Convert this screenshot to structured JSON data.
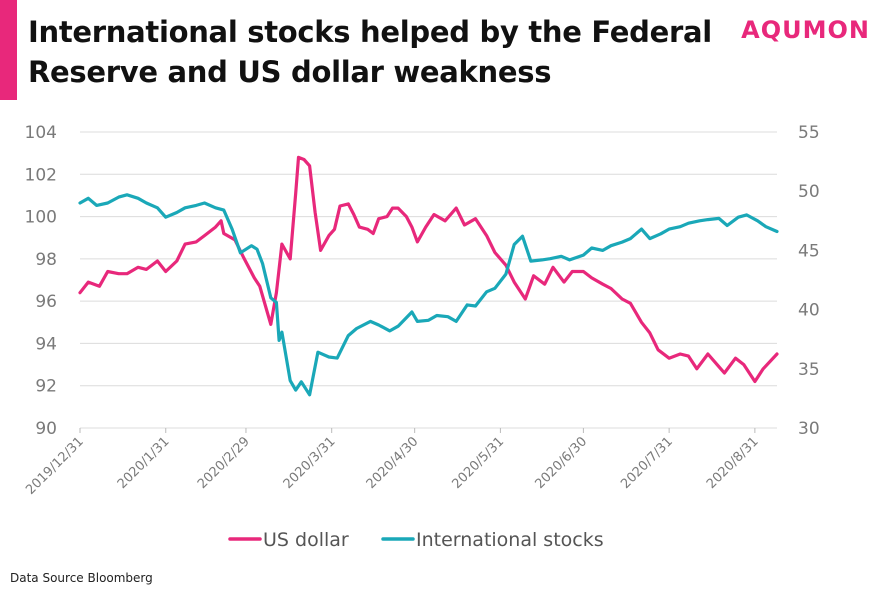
{
  "header": {
    "title": "International stocks helped by the Federal Reserve and US dollar weakness",
    "brand": "AQUMON",
    "accent_color": "#e8287b"
  },
  "footer": {
    "source": "Data Source Bloomberg"
  },
  "chart_data": {
    "type": "line",
    "title": "International stocks helped by the Federal Reserve and US dollar weakness",
    "x_tick_labels": [
      "2019/12/31",
      "2020/1/31",
      "2020/2/29",
      "2020/3/31",
      "2020/4/30",
      "2020/5/31",
      "2020/6/30",
      "2020/7/31",
      "2020/8/31"
    ],
    "x_tick_dates": [
      "2019-12-31",
      "2020-01-31",
      "2020-02-29",
      "2020-03-31",
      "2020-04-30",
      "2020-05-31",
      "2020-06-30",
      "2020-07-31",
      "2020-08-31"
    ],
    "x_range": [
      "2019-12-31",
      "2020-09-08"
    ],
    "y_left": {
      "min": 90,
      "max": 104,
      "ticks": [
        90,
        92,
        94,
        96,
        98,
        100,
        102,
        104
      ]
    },
    "y_right": {
      "min": 30,
      "max": 55,
      "ticks": [
        30,
        35,
        40,
        45,
        50,
        55
      ]
    },
    "grid": "horizontal",
    "legend_position": "bottom",
    "series": [
      {
        "name": "US dollar",
        "axis": "left",
        "color": "#e8287b",
        "points": [
          [
            "2019-12-31",
            96.4
          ],
          [
            "2020-01-03",
            96.9
          ],
          [
            "2020-01-07",
            96.7
          ],
          [
            "2020-01-10",
            97.4
          ],
          [
            "2020-01-14",
            97.3
          ],
          [
            "2020-01-17",
            97.3
          ],
          [
            "2020-01-21",
            97.6
          ],
          [
            "2020-01-24",
            97.5
          ],
          [
            "2020-01-28",
            97.9
          ],
          [
            "2020-01-31",
            97.4
          ],
          [
            "2020-02-04",
            97.9
          ],
          [
            "2020-02-07",
            98.7
          ],
          [
            "2020-02-11",
            98.8
          ],
          [
            "2020-02-14",
            99.1
          ],
          [
            "2020-02-18",
            99.5
          ],
          [
            "2020-02-20",
            99.8
          ],
          [
            "2020-02-21",
            99.2
          ],
          [
            "2020-02-25",
            98.9
          ],
          [
            "2020-02-28",
            98.1
          ],
          [
            "2020-03-03",
            97.1
          ],
          [
            "2020-03-05",
            96.7
          ],
          [
            "2020-03-09",
            94.9
          ],
          [
            "2020-03-11",
            96.4
          ],
          [
            "2020-03-13",
            98.7
          ],
          [
            "2020-03-16",
            98.0
          ],
          [
            "2020-03-18",
            101.1
          ],
          [
            "2020-03-19",
            102.8
          ],
          [
            "2020-03-21",
            102.7
          ],
          [
            "2020-03-23",
            102.4
          ],
          [
            "2020-03-25",
            100.2
          ],
          [
            "2020-03-27",
            98.4
          ],
          [
            "2020-03-30",
            99.1
          ],
          [
            "2020-04-01",
            99.4
          ],
          [
            "2020-04-03",
            100.5
          ],
          [
            "2020-04-06",
            100.6
          ],
          [
            "2020-04-08",
            100.1
          ],
          [
            "2020-04-10",
            99.5
          ],
          [
            "2020-04-13",
            99.4
          ],
          [
            "2020-04-15",
            99.2
          ],
          [
            "2020-04-17",
            99.9
          ],
          [
            "2020-04-20",
            100.0
          ],
          [
            "2020-04-22",
            100.4
          ],
          [
            "2020-04-24",
            100.4
          ],
          [
            "2020-04-27",
            100.0
          ],
          [
            "2020-04-29",
            99.5
          ],
          [
            "2020-05-01",
            98.8
          ],
          [
            "2020-05-04",
            99.5
          ],
          [
            "2020-05-07",
            100.1
          ],
          [
            "2020-05-11",
            99.8
          ],
          [
            "2020-05-15",
            100.4
          ],
          [
            "2020-05-18",
            99.6
          ],
          [
            "2020-05-22",
            99.9
          ],
          [
            "2020-05-26",
            99.1
          ],
          [
            "2020-05-29",
            98.3
          ],
          [
            "2020-06-02",
            97.7
          ],
          [
            "2020-06-05",
            96.9
          ],
          [
            "2020-06-09",
            96.1
          ],
          [
            "2020-06-12",
            97.2
          ],
          [
            "2020-06-16",
            96.8
          ],
          [
            "2020-06-19",
            97.6
          ],
          [
            "2020-06-23",
            96.9
          ],
          [
            "2020-06-26",
            97.4
          ],
          [
            "2020-06-30",
            97.4
          ],
          [
            "2020-07-03",
            97.1
          ],
          [
            "2020-07-07",
            96.8
          ],
          [
            "2020-07-10",
            96.6
          ],
          [
            "2020-07-14",
            96.1
          ],
          [
            "2020-07-17",
            95.9
          ],
          [
            "2020-07-21",
            95.0
          ],
          [
            "2020-07-24",
            94.5
          ],
          [
            "2020-07-27",
            93.7
          ],
          [
            "2020-07-31",
            93.3
          ],
          [
            "2020-08-04",
            93.5
          ],
          [
            "2020-08-07",
            93.4
          ],
          [
            "2020-08-10",
            92.8
          ],
          [
            "2020-08-14",
            93.5
          ],
          [
            "2020-08-18",
            92.9
          ],
          [
            "2020-08-20",
            92.6
          ],
          [
            "2020-08-24",
            93.3
          ],
          [
            "2020-08-27",
            93.0
          ],
          [
            "2020-08-31",
            92.2
          ],
          [
            "2020-09-03",
            92.8
          ],
          [
            "2020-09-08",
            93.5
          ]
        ]
      },
      {
        "name": "International stocks",
        "axis": "right",
        "color": "#1aa8b8",
        "points": [
          [
            "2019-12-31",
            49.0
          ],
          [
            "2020-01-03",
            49.4
          ],
          [
            "2020-01-06",
            48.8
          ],
          [
            "2020-01-10",
            49.0
          ],
          [
            "2020-01-14",
            49.5
          ],
          [
            "2020-01-17",
            49.7
          ],
          [
            "2020-01-21",
            49.4
          ],
          [
            "2020-01-24",
            49.0
          ],
          [
            "2020-01-28",
            48.6
          ],
          [
            "2020-01-31",
            47.8
          ],
          [
            "2020-02-04",
            48.2
          ],
          [
            "2020-02-07",
            48.6
          ],
          [
            "2020-02-11",
            48.8
          ],
          [
            "2020-02-14",
            49.0
          ],
          [
            "2020-02-18",
            48.6
          ],
          [
            "2020-02-21",
            48.4
          ],
          [
            "2020-02-24",
            46.8
          ],
          [
            "2020-02-27",
            44.8
          ],
          [
            "2020-03-02",
            45.4
          ],
          [
            "2020-03-04",
            45.1
          ],
          [
            "2020-03-06",
            43.9
          ],
          [
            "2020-03-09",
            41.0
          ],
          [
            "2020-03-11",
            40.6
          ],
          [
            "2020-03-12",
            37.4
          ],
          [
            "2020-03-13",
            38.1
          ],
          [
            "2020-03-16",
            34.0
          ],
          [
            "2020-03-18",
            33.2
          ],
          [
            "2020-03-20",
            33.9
          ],
          [
            "2020-03-23",
            32.8
          ],
          [
            "2020-03-26",
            36.4
          ],
          [
            "2020-03-30",
            36.0
          ],
          [
            "2020-04-02",
            35.9
          ],
          [
            "2020-04-06",
            37.8
          ],
          [
            "2020-04-09",
            38.4
          ],
          [
            "2020-04-14",
            39.0
          ],
          [
            "2020-04-17",
            38.7
          ],
          [
            "2020-04-21",
            38.2
          ],
          [
            "2020-04-24",
            38.6
          ],
          [
            "2020-04-29",
            39.8
          ],
          [
            "2020-05-01",
            39.0
          ],
          [
            "2020-05-05",
            39.1
          ],
          [
            "2020-05-08",
            39.5
          ],
          [
            "2020-05-12",
            39.4
          ],
          [
            "2020-05-15",
            39.0
          ],
          [
            "2020-05-19",
            40.4
          ],
          [
            "2020-05-22",
            40.3
          ],
          [
            "2020-05-26",
            41.5
          ],
          [
            "2020-05-29",
            41.8
          ],
          [
            "2020-06-02",
            43.0
          ],
          [
            "2020-06-05",
            45.5
          ],
          [
            "2020-06-08",
            46.2
          ],
          [
            "2020-06-11",
            44.1
          ],
          [
            "2020-06-15",
            44.2
          ],
          [
            "2020-06-18",
            44.3
          ],
          [
            "2020-06-22",
            44.5
          ],
          [
            "2020-06-25",
            44.2
          ],
          [
            "2020-06-30",
            44.6
          ],
          [
            "2020-07-03",
            45.2
          ],
          [
            "2020-07-07",
            45.0
          ],
          [
            "2020-07-10",
            45.4
          ],
          [
            "2020-07-14",
            45.7
          ],
          [
            "2020-07-17",
            46.0
          ],
          [
            "2020-07-21",
            46.8
          ],
          [
            "2020-07-24",
            46.0
          ],
          [
            "2020-07-28",
            46.4
          ],
          [
            "2020-07-31",
            46.8
          ],
          [
            "2020-08-04",
            47.0
          ],
          [
            "2020-08-07",
            47.3
          ],
          [
            "2020-08-11",
            47.5
          ],
          [
            "2020-08-14",
            47.6
          ],
          [
            "2020-08-18",
            47.7
          ],
          [
            "2020-08-21",
            47.1
          ],
          [
            "2020-08-25",
            47.8
          ],
          [
            "2020-08-28",
            48.0
          ],
          [
            "2020-09-01",
            47.5
          ],
          [
            "2020-09-04",
            47.0
          ],
          [
            "2020-09-08",
            46.6
          ]
        ]
      }
    ]
  }
}
